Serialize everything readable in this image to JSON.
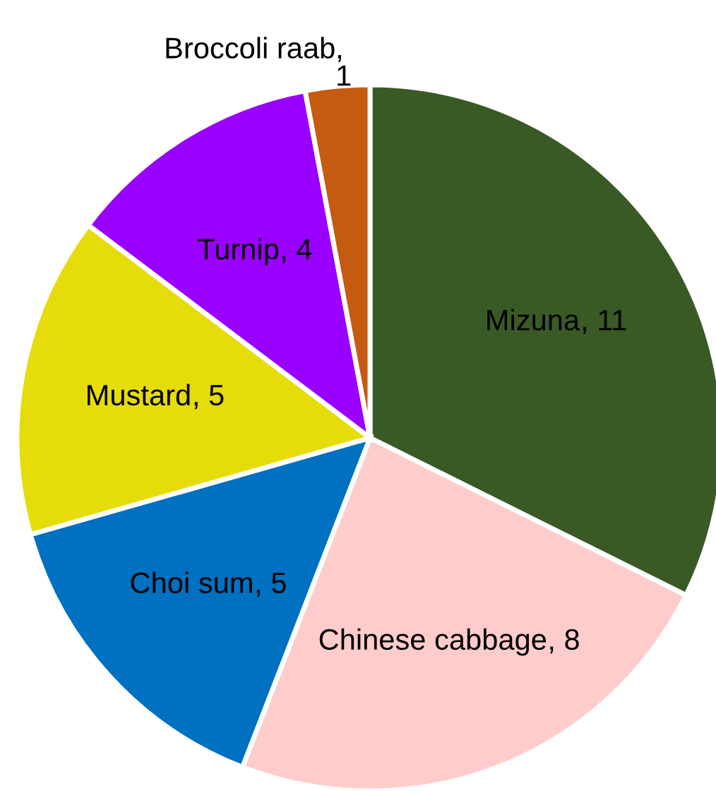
{
  "chart_data": {
    "type": "pie",
    "categories": [
      "Mizuna",
      "Chinese cabbage",
      "Choi sum",
      "Mustard",
      "Turnip",
      "Broccoli raab"
    ],
    "values": [
      11,
      8,
      5,
      5,
      4,
      1
    ],
    "colors": [
      "#3a5a25",
      "#ffcccc",
      "#0070c0",
      "#e6dc0a",
      "#9900ff",
      "#c55a11"
    ],
    "value_labels": [
      ", 11",
      ", 8",
      ", 5",
      ", 5",
      ", 4",
      ", 1"
    ]
  }
}
